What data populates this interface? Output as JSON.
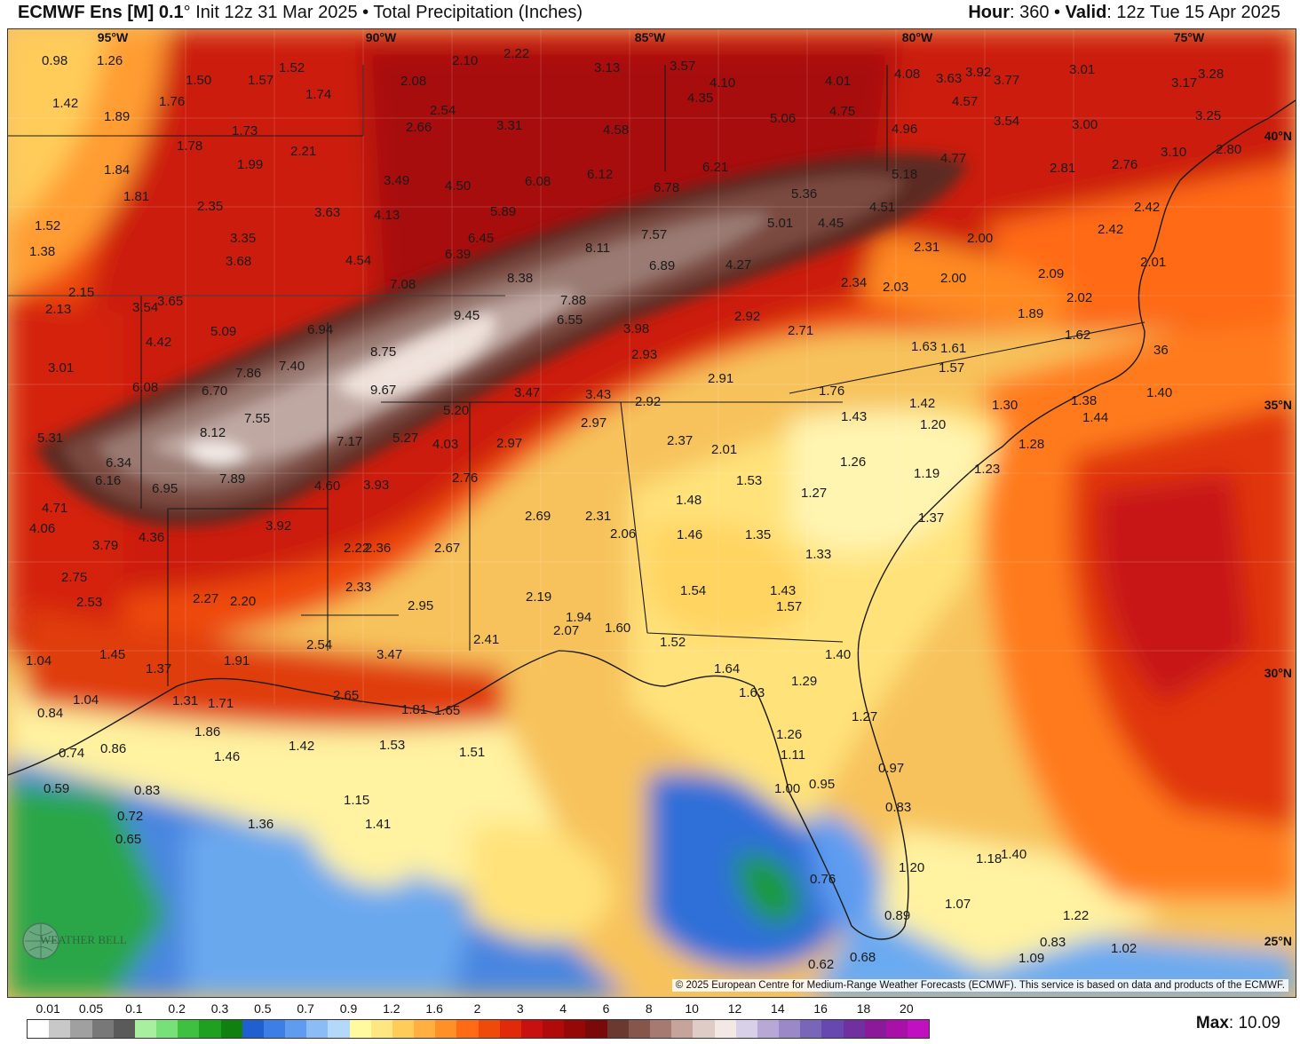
{
  "header": {
    "model": "ECMWF Ens [M] 0.1",
    "degree": "°",
    "init": " Init 12z 31 Mar 2025 • Total Precipitation (Inches)",
    "hour_label": "Hour",
    "hour_value": ": 360 • ",
    "valid_label": "Valid",
    "valid_value": ": 12z Tue 15 Apr 2025"
  },
  "map": {
    "lat_labels": [
      "40°N",
      "35°N",
      "30°N",
      "25°N"
    ],
    "lon_labels": [
      "95°W",
      "90°W",
      "85°W",
      "80°W",
      "75°W"
    ],
    "copyright": "© 2025 European Centre for Medium-Range Weather Forecasts (ECMWF). This service is based on data and products of the ECMWF.",
    "logo_text": "WEATHER BELL",
    "values": [
      "0.98",
      "1.26",
      "1.52",
      "1.50",
      "1.57",
      "1.74",
      "2.10",
      "2.22",
      "3.13",
      "3.57",
      "4.10",
      "4.35",
      "4.01",
      "4.08",
      "3.92",
      "3.77",
      "3.01",
      "3.28",
      "3.17",
      "1.42",
      "1.89",
      "1.76",
      "1.78",
      "1.73",
      "2.08",
      "2.54",
      "2.66",
      "3.31",
      "4.58",
      "5.06",
      "4.75",
      "4.57",
      "3.54",
      "3.00",
      "3.63",
      "3.25",
      "4.96",
      "1.84",
      "1.81",
      "1.99",
      "2.21",
      "3.49",
      "4.50",
      "6.08",
      "6.12",
      "6.21",
      "6.78",
      "5.36",
      "5.18",
      "4.77",
      "2.81",
      "2.76",
      "3.10",
      "2.80",
      "1.52",
      "1.38",
      "2.35",
      "3.35",
      "3.68",
      "3.63",
      "4.13",
      "5.89",
      "6.45",
      "6.39",
      "8.11",
      "7.57",
      "6.89",
      "5.01",
      "4.45",
      "4.51",
      "2.42",
      "2.42",
      "4.54",
      "7.08",
      "8.38",
      "4.27",
      "2.34",
      "2.03",
      "2.31",
      "2.00",
      "2.00",
      "2.09",
      "2.01",
      "2.02",
      "2.15",
      "2.13",
      "3.54",
      "3.65",
      "5.09",
      "6.94",
      "9.45",
      "7.88",
      "6.55",
      "2.92",
      "1.89",
      "3.98",
      "2.71",
      "4.42",
      "7.86",
      "7.40",
      "8.75",
      "2.93",
      "1.63",
      "1.61",
      "1.57",
      "1.62",
      "36",
      "3.01",
      "6.08",
      "6.70",
      "9.67",
      "3.47",
      "3.43",
      "2.91",
      "1.76",
      "1.42",
      "1.30",
      "1.38",
      "1.40",
      "7.55",
      "5.20",
      "2.97",
      "2.92",
      "1.43",
      "1.20",
      "1.44",
      "5.31",
      "8.12",
      "7.17",
      "5.27",
      "4.03",
      "2.97",
      "2.37",
      "2.01",
      "1.26",
      "1.19",
      "1.28",
      "1.23",
      "6.34",
      "6.16",
      "6.95",
      "7.89",
      "4.60",
      "3.93",
      "2.76",
      "1.53",
      "1.27",
      "4.71",
      "4.06",
      "3.79",
      "4.36",
      "3.92",
      "2.69",
      "2.31",
      "1.48",
      "1.46",
      "1.35",
      "1.33",
      "1.37",
      "2.22",
      "2.36",
      "2.67",
      "2.06",
      "2.75",
      "2.53",
      "2.27",
      "2.20",
      "2.33",
      "2.95",
      "2.19",
      "1.54",
      "1.43",
      "1.57",
      "1.94",
      "2.07",
      "1.60",
      "1.52",
      "2.54",
      "3.47",
      "2.41",
      "1.04",
      "1.45",
      "1.37",
      "1.91",
      "1.40",
      "1.64",
      "1.63",
      "1.29",
      "1.04",
      "1.31",
      "1.71",
      "2.65",
      "1.81",
      "1.65",
      "0.84",
      "1.27",
      "0.74",
      "0.86",
      "1.86",
      "1.46",
      "1.42",
      "1.53",
      "1.51",
      "1.26",
      "1.11",
      "0.59",
      "0.83",
      "1.00",
      "0.95",
      "0.97",
      "0.83",
      "0.72",
      "0.65",
      "1.36",
      "1.15",
      "1.41",
      "0.76",
      "1.20",
      "1.18",
      "1.40",
      "1.07",
      "0.89",
      "1.22",
      "0.83",
      "1.09",
      "1.02",
      "0.62",
      "0.68"
    ]
  },
  "legend": {
    "labels": [
      "0.01",
      "0.05",
      "0.1",
      "0.2",
      "0.3",
      "0.5",
      "0.7",
      "0.9",
      "1.2",
      "1.6",
      "2",
      "3",
      "4",
      "6",
      "8",
      "10",
      "12",
      "14",
      "16",
      "18",
      "20"
    ],
    "colors": [
      "#ffffff",
      "#c8c8c8",
      "#a0a0a0",
      "#787878",
      "#5a5a5a",
      "#a8f0a0",
      "#78e078",
      "#40c040",
      "#20a020",
      "#108010",
      "#1f5fd0",
      "#3c7ee6",
      "#5f9cf0",
      "#8cbcf6",
      "#b4d8fa",
      "#fffaa0",
      "#ffe680",
      "#ffcc5a",
      "#ffb040",
      "#ff9028",
      "#ff6a14",
      "#f04a0a",
      "#e02a0a",
      "#c81010",
      "#b00a0a",
      "#960808",
      "#7a0a0a",
      "#6a3a30",
      "#86564a",
      "#a67a70",
      "#c6a49c",
      "#e0ccc6",
      "#f4e8e4",
      "#d8d0e8",
      "#b8a8d8",
      "#9a88c8",
      "#7a66b8",
      "#6648b0",
      "#7030a0",
      "#8a1a9a",
      "#a810a8",
      "#c010c0"
    ],
    "max_label": "Max",
    "max_value": ": 10.09"
  }
}
